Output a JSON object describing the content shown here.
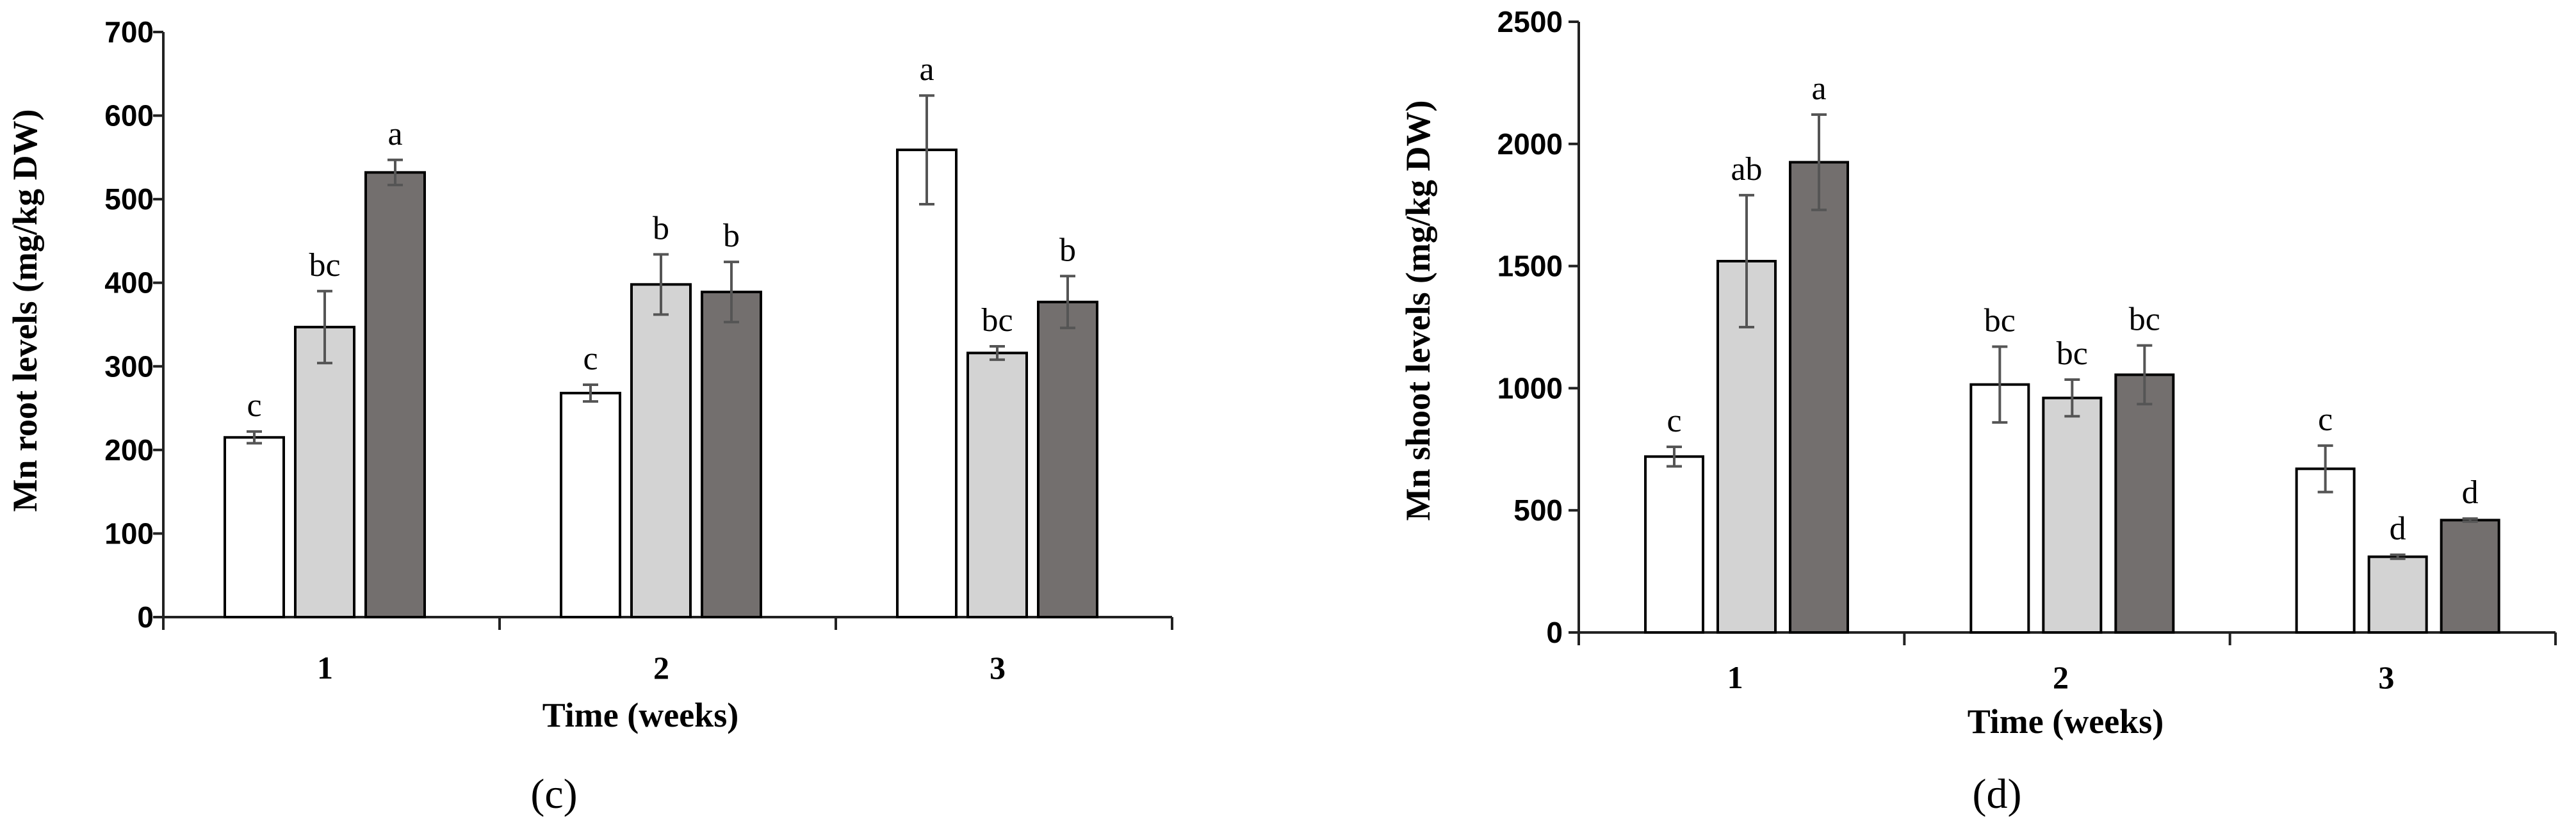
{
  "chart_data": [
    {
      "type": "bar",
      "panel_label": "(c)",
      "xlabel": "Time (weeks)",
      "ylabel": "Mn root levels (mg/kg DW)",
      "ylim": [
        0,
        700
      ],
      "yticks": [
        0,
        100,
        200,
        300,
        400,
        500,
        600,
        700
      ],
      "categories": [
        "1",
        "2",
        "3"
      ],
      "grid": false,
      "legend": "none",
      "series_colors": [
        "#ffffff",
        "#d3d3d3",
        "#736f6e"
      ],
      "series": [
        {
          "values": [
            215,
            268,
            559
          ],
          "errors": [
            7,
            10,
            65
          ],
          "letters": [
            "c",
            "c",
            "a"
          ]
        },
        {
          "values": [
            347,
            398,
            316
          ],
          "errors": [
            43,
            36,
            8
          ],
          "letters": [
            "bc",
            "b",
            "bc"
          ]
        },
        {
          "values": [
            532,
            389,
            377
          ],
          "errors": [
            15,
            36,
            31
          ],
          "letters": [
            "a",
            "b",
            "b"
          ]
        }
      ]
    },
    {
      "type": "bar",
      "panel_label": "(d)",
      "xlabel": "Time (weeks)",
      "ylabel": "Mn shoot levels (mg/kg DW)",
      "ylim": [
        0,
        2500
      ],
      "yticks": [
        0,
        500,
        1000,
        1500,
        2000,
        2500
      ],
      "categories": [
        "1",
        "2",
        "3"
      ],
      "grid": false,
      "legend": "none",
      "series_colors": [
        "#ffffff",
        "#d3d3d3",
        "#736f6e"
      ],
      "series": [
        {
          "values": [
            720,
            1015,
            670
          ],
          "errors": [
            40,
            155,
            95
          ],
          "letters": [
            "c",
            "bc",
            "c"
          ]
        },
        {
          "values": [
            1520,
            960,
            310
          ],
          "errors": [
            270,
            75,
            8
          ],
          "letters": [
            "ab",
            "bc",
            "d"
          ]
        },
        {
          "values": [
            1925,
            1055,
            460
          ],
          "errors": [
            195,
            120,
            6
          ],
          "letters": [
            "a",
            "bc",
            "d"
          ]
        }
      ]
    }
  ]
}
